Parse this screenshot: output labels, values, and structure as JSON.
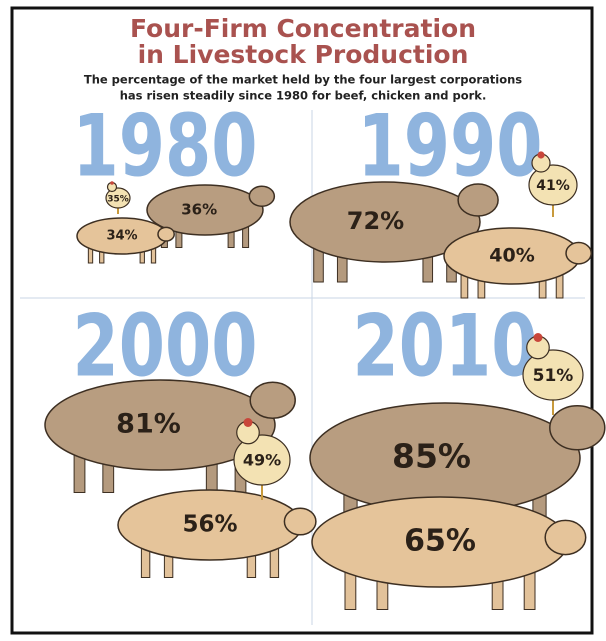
{
  "header": {
    "title_line1": "Four-Firm Concentration",
    "title_line2": "in Livestock Production",
    "subtitle_line1": "The percentage of the market held by the four largest corporations",
    "subtitle_line2": "has risen steadily since 1980 for beef, chicken and pork."
  },
  "panels": [
    {
      "year": "1980",
      "beef": "36%",
      "pork": "34%",
      "chicken": "35%"
    },
    {
      "year": "1990",
      "beef": "72%",
      "pork": "40%",
      "chicken": "41%"
    },
    {
      "year": "2000",
      "beef": "81%",
      "pork": "56%",
      "chicken": "49%"
    },
    {
      "year": "2010",
      "beef": "85%",
      "pork": "65%",
      "chicken": "51%"
    }
  ]
}
